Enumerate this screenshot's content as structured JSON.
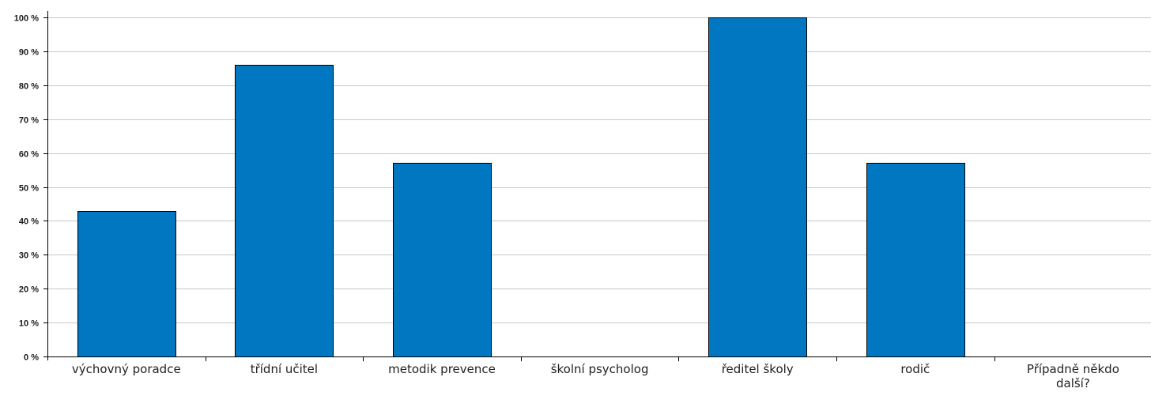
{
  "chart_data": {
    "type": "bar",
    "title": "",
    "xlabel": "",
    "ylabel": "",
    "categories": [
      [
        "výchovný poradce"
      ],
      [
        "třídní učitel"
      ],
      [
        "metodik prevence"
      ],
      [
        "školní psycholog"
      ],
      [
        "ředitel školy"
      ],
      [
        "rodič"
      ],
      [
        "Případně někdo",
        "další?"
      ]
    ],
    "values": [
      43,
      86,
      57,
      0,
      100,
      57,
      0
    ],
    "ylim": [
      0,
      100
    ],
    "yticks": [
      0,
      10,
      20,
      30,
      40,
      50,
      60,
      70,
      80,
      90,
      100
    ],
    "ytick_suffix": " %",
    "grid": true,
    "legend": "none",
    "bar_color": "#0077c0",
    "grid_color": "#c8c8c8"
  }
}
